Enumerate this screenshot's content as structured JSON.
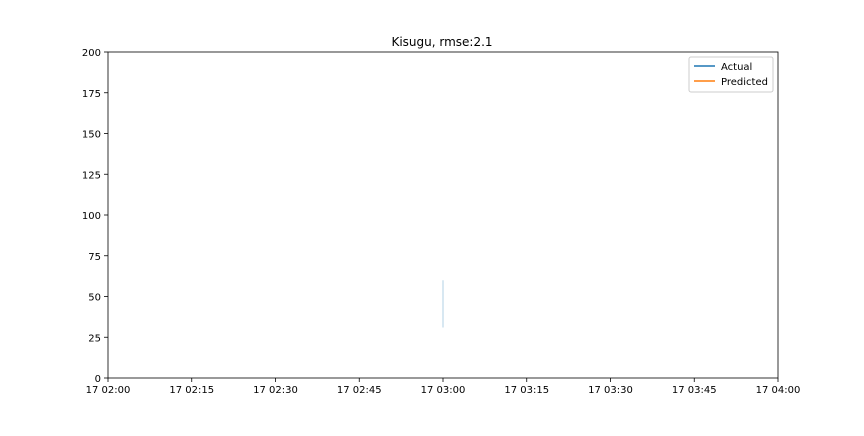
{
  "chart_data": {
    "type": "line",
    "title": "Kisugu, rmse:2.1",
    "xlabel": "",
    "ylabel": "",
    "xlim": [
      "17 02:00",
      "17 04:00"
    ],
    "ylim": [
      0,
      200
    ],
    "x_tick_labels": [
      "17 02:00",
      "17 02:15",
      "17 02:30",
      "17 02:45",
      "17 03:00",
      "17 03:15",
      "17 03:30",
      "17 03:45",
      "17 04:00"
    ],
    "y_ticks": [
      0,
      25,
      50,
      75,
      100,
      125,
      150,
      175,
      200
    ],
    "grid": false,
    "legend_position": "top-right",
    "series": [
      {
        "name": "Actual",
        "color": "#1f77b4",
        "x": [
          "17 03:00",
          "17 03:00"
        ],
        "y": [
          31,
          60
        ]
      },
      {
        "name": "Predicted",
        "color": "#ff7f0e",
        "x": [],
        "y": []
      }
    ]
  }
}
